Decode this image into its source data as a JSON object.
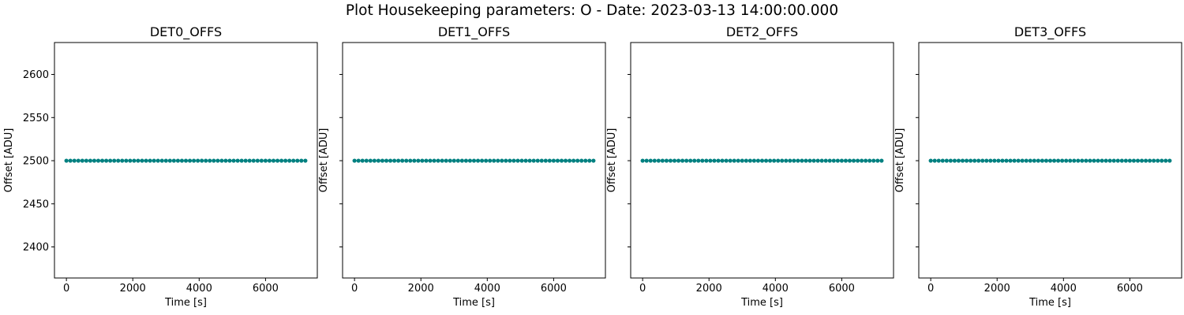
{
  "figure": {
    "suptitle": "Plot Housekeeping parameters: O - Date: 2023-03-13 14:00:00.000"
  },
  "colors": {
    "marker": "#008080",
    "axes": "#000000",
    "background": "#ffffff"
  },
  "chart_data": [
    {
      "type": "scatter",
      "title": "DET0_OFFS",
      "xlabel": "Time [s]",
      "ylabel": "Offset [ADU]",
      "xlim": [
        -360,
        7560
      ],
      "ylim": [
        2364,
        2637
      ],
      "xticks": [
        0,
        2000,
        4000,
        6000
      ],
      "yticks": [
        2400,
        2450,
        2500,
        2550,
        2600
      ],
      "ytick_labels_visible": true,
      "grid": false,
      "series": [
        {
          "x_start": 0,
          "x_end": 7200,
          "x_step": 120,
          "y": 2500
        }
      ]
    },
    {
      "type": "scatter",
      "title": "DET1_OFFS",
      "xlabel": "Time [s]",
      "ylabel": "Offset [ADU]",
      "xlim": [
        -360,
        7560
      ],
      "ylim": [
        2364,
        2637
      ],
      "xticks": [
        0,
        2000,
        4000,
        6000
      ],
      "yticks": [
        2400,
        2450,
        2500,
        2550,
        2600
      ],
      "ytick_labels_visible": false,
      "grid": false,
      "series": [
        {
          "x_start": 0,
          "x_end": 7200,
          "x_step": 120,
          "y": 2500
        }
      ]
    },
    {
      "type": "scatter",
      "title": "DET2_OFFS",
      "xlabel": "Time [s]",
      "ylabel": "Offset [ADU]",
      "xlim": [
        -360,
        7560
      ],
      "ylim": [
        2364,
        2637
      ],
      "xticks": [
        0,
        2000,
        4000,
        6000
      ],
      "yticks": [
        2400,
        2450,
        2500,
        2550,
        2600
      ],
      "ytick_labels_visible": false,
      "grid": false,
      "series": [
        {
          "x_start": 0,
          "x_end": 7200,
          "x_step": 120,
          "y": 2500
        }
      ]
    },
    {
      "type": "scatter",
      "title": "DET3_OFFS",
      "xlabel": "Time [s]",
      "ylabel": "Offset [ADU]",
      "xlim": [
        -360,
        7560
      ],
      "ylim": [
        2364,
        2637
      ],
      "xticks": [
        0,
        2000,
        4000,
        6000
      ],
      "yticks": [
        2400,
        2450,
        2500,
        2550,
        2600
      ],
      "ytick_labels_visible": false,
      "grid": false,
      "series": [
        {
          "x_start": 0,
          "x_end": 7200,
          "x_step": 120,
          "y": 2500
        }
      ]
    }
  ]
}
